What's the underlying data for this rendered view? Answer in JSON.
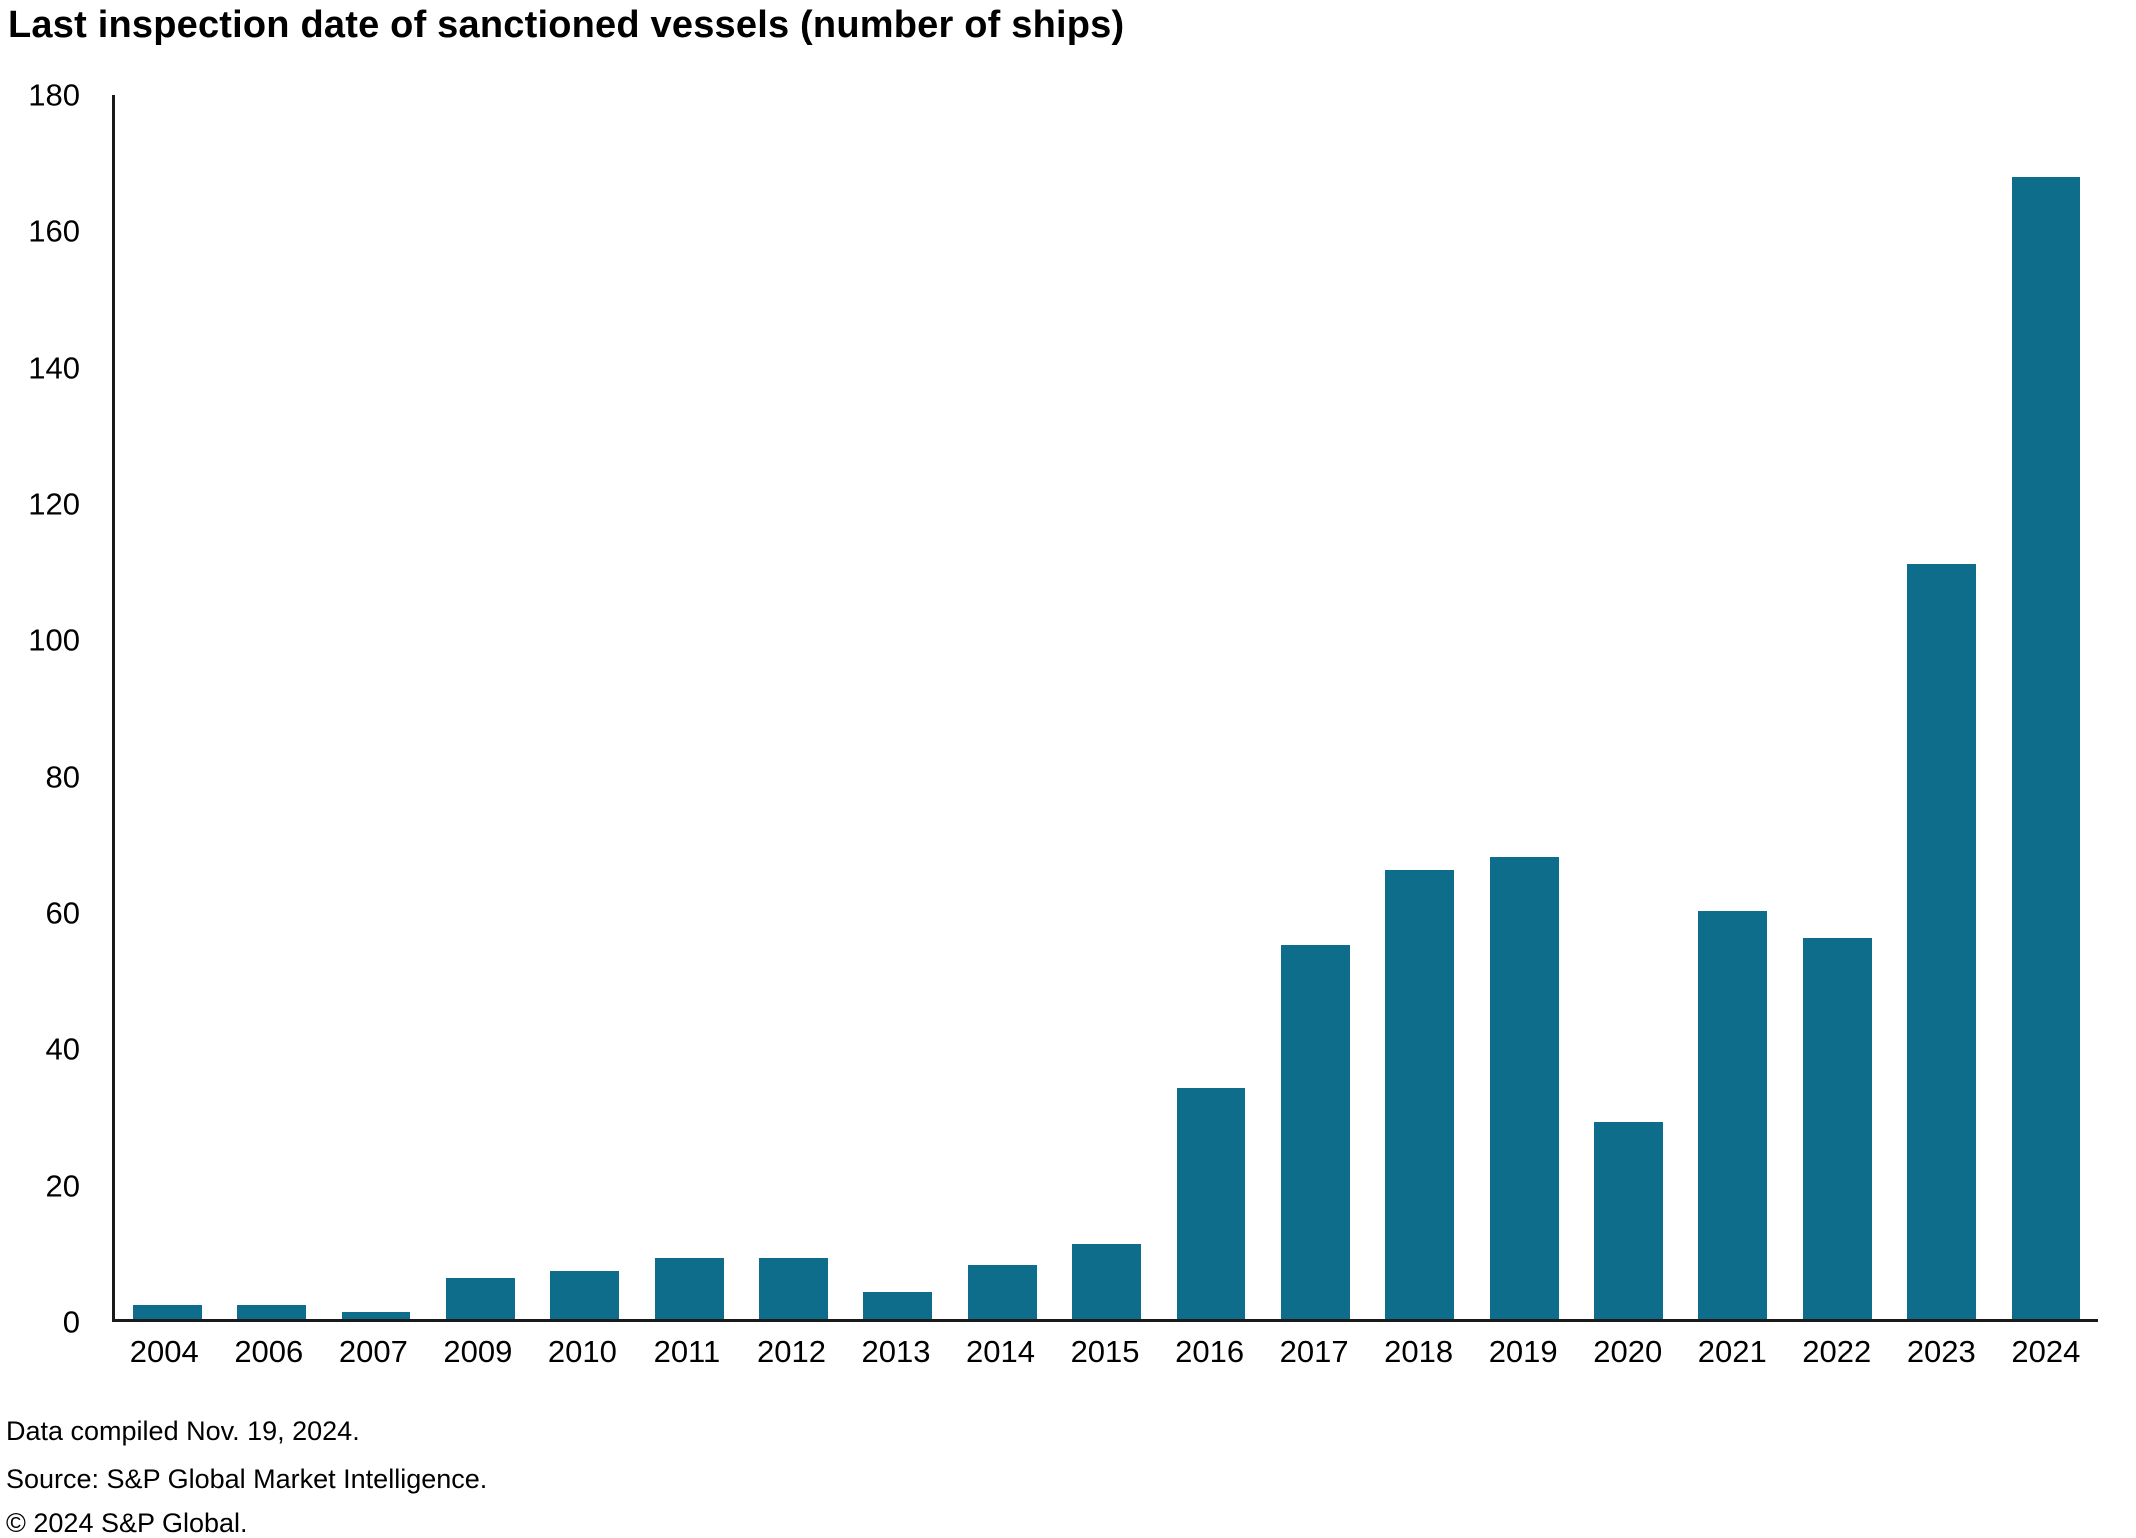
{
  "chart_data": {
    "type": "bar",
    "title": "Last inspection date of sanctioned vessels (number of ships)",
    "categories": [
      "2004",
      "2006",
      "2007",
      "2009",
      "2010",
      "2011",
      "2012",
      "2013",
      "2014",
      "2015",
      "2016",
      "2017",
      "2018",
      "2019",
      "2020",
      "2021",
      "2022",
      "2023",
      "2024"
    ],
    "values": [
      2,
      2,
      1,
      6,
      7,
      9,
      9,
      4,
      8,
      11,
      34,
      55,
      66,
      68,
      29,
      60,
      56,
      111,
      168
    ],
    "xlabel": "",
    "ylabel": "",
    "ylim": [
      0,
      180
    ],
    "ytick_step": 20,
    "grid": false,
    "legend_position": "none",
    "bar_color": "#0d6d8a",
    "axis_color": "#1a1a1a"
  },
  "footer": {
    "compiled": "Data compiled Nov. 19, 2024.",
    "source": "Source: S&P Global Market Intelligence.",
    "copyright": "© 2024 S&P Global."
  }
}
